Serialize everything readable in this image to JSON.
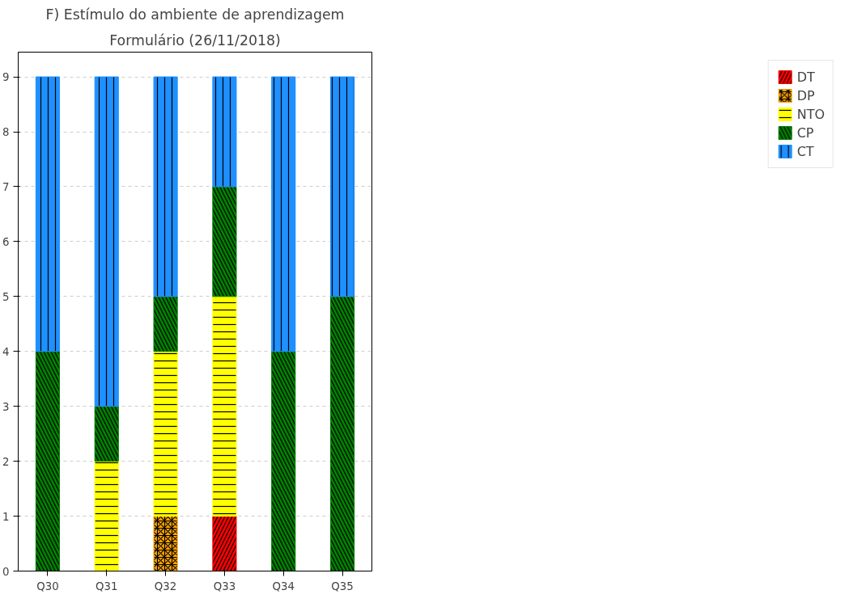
{
  "chart_data": {
    "type": "bar",
    "title": "F) Estímulo do ambiente de aprendizagem",
    "subtitle": "Formulário (26/11/2018)",
    "categories": [
      "Q30",
      "Q31",
      "Q32",
      "Q33",
      "Q34",
      "Q35"
    ],
    "stacked": true,
    "series": [
      {
        "name": "DT",
        "color": "#ff0000",
        "values": [
          0,
          0,
          0,
          1,
          0,
          0
        ]
      },
      {
        "name": "DP",
        "color": "#ffa500",
        "values": [
          0,
          0,
          1,
          0,
          0,
          0
        ]
      },
      {
        "name": "NTO",
        "color": "#ffff00",
        "values": [
          0,
          2,
          3,
          4,
          0,
          0
        ]
      },
      {
        "name": "CP",
        "color": "#008000",
        "values": [
          4,
          1,
          1,
          2,
          4,
          5
        ]
      },
      {
        "name": "CT",
        "color": "#1e90ff",
        "values": [
          5,
          6,
          4,
          2,
          5,
          4
        ]
      }
    ],
    "ylim": [
      0,
      9.45
    ],
    "yticks": [
      0,
      1,
      2,
      3,
      4,
      5,
      6,
      7,
      8,
      9
    ],
    "grid": "y",
    "legend": "top right"
  }
}
